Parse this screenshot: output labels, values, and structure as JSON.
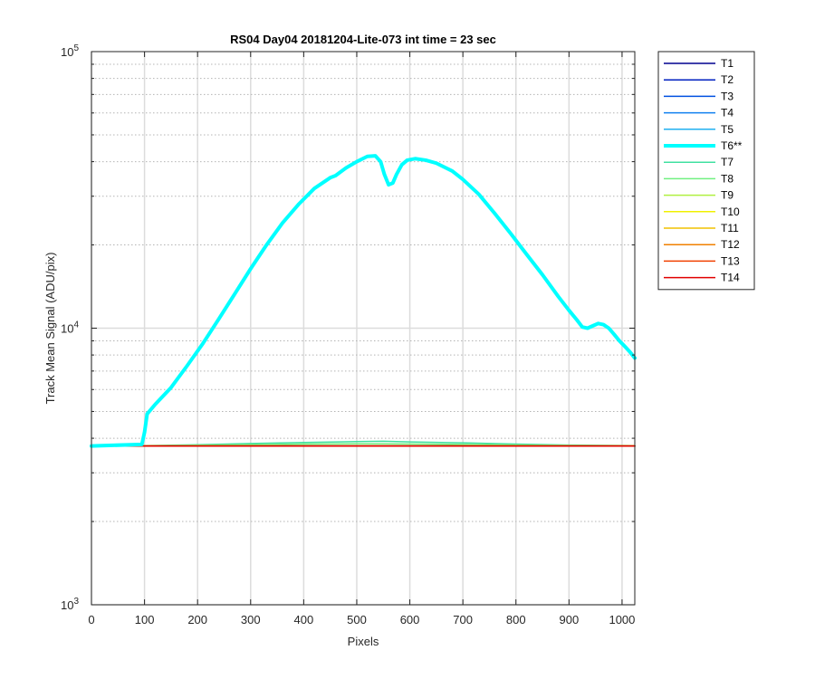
{
  "chart_data": {
    "type": "line",
    "title": "RS04 Day04 20181204-Lite-073 int time = 23 sec",
    "xlabel": "Pixels",
    "ylabel": "Track Mean Signal (ADU/pix)",
    "xlim": [
      0,
      1024
    ],
    "ylim": [
      1000,
      100000
    ],
    "yscale": "log",
    "xticks": [
      0,
      100,
      200,
      300,
      400,
      500,
      600,
      700,
      800,
      900,
      1000
    ],
    "xtick_labels": [
      "0",
      "100",
      "200",
      "300",
      "400",
      "500",
      "600",
      "700",
      "800",
      "900",
      "1000"
    ],
    "yticks": [
      {
        "base": "10",
        "exp": "3",
        "value": 1000
      },
      {
        "base": "10",
        "exp": "4",
        "value": 10000
      },
      {
        "base": "10",
        "exp": "5",
        "value": 100000
      }
    ],
    "grid": true,
    "legend_position": "outside-right",
    "series": [
      {
        "name": "T1",
        "color": "#00008f",
        "width": 1.5,
        "x": [
          0,
          1024
        ],
        "y": [
          3750,
          3750
        ]
      },
      {
        "name": "T2",
        "color": "#0020c0",
        "width": 1.5,
        "x": [
          0,
          1024
        ],
        "y": [
          3750,
          3750
        ]
      },
      {
        "name": "T3",
        "color": "#0050e0",
        "width": 1.5,
        "x": [
          0,
          1024
        ],
        "y": [
          3750,
          3750
        ]
      },
      {
        "name": "T4",
        "color": "#1080f0",
        "width": 1.5,
        "x": [
          0,
          1024
        ],
        "y": [
          3750,
          3750
        ]
      },
      {
        "name": "T5",
        "color": "#20b0f0",
        "width": 1.5,
        "x": [
          0,
          1024
        ],
        "y": [
          3750,
          3750
        ]
      },
      {
        "name": "T6**",
        "color": "#00ffff",
        "width": 4,
        "x": [
          0,
          95,
          100,
          105,
          120,
          150,
          180,
          210,
          240,
          270,
          300,
          330,
          360,
          390,
          420,
          450,
          460,
          480,
          500,
          520,
          535,
          545,
          552,
          560,
          568,
          575,
          585,
          595,
          610,
          630,
          650,
          680,
          700,
          730,
          760,
          790,
          820,
          850,
          880,
          900,
          915,
          925,
          935,
          945,
          955,
          965,
          975,
          985,
          995,
          1005,
          1015,
          1024
        ],
        "y": [
          3750,
          3800,
          4200,
          4900,
          5300,
          6100,
          7300,
          8800,
          10800,
          13300,
          16400,
          20000,
          24000,
          28000,
          32000,
          35000,
          35600,
          38000,
          40000,
          41800,
          42000,
          40000,
          36000,
          33000,
          33500,
          36000,
          39000,
          40500,
          41000,
          40500,
          39500,
          37000,
          34500,
          30500,
          26000,
          22000,
          18500,
          15600,
          13000,
          11600,
          10700,
          10100,
          10000,
          10200,
          10400,
          10300,
          10000,
          9500,
          9000,
          8600,
          8200,
          7800
        ]
      },
      {
        "name": "T7",
        "color": "#40e0a0",
        "width": 1.5,
        "x": [
          0,
          100,
          200,
          300,
          400,
          500,
          550,
          600,
          700,
          800,
          900,
          1024
        ],
        "y": [
          3750,
          3760,
          3790,
          3830,
          3860,
          3890,
          3900,
          3880,
          3850,
          3810,
          3780,
          3760
        ]
      },
      {
        "name": "T8",
        "color": "#70f080",
        "width": 1.5,
        "x": [
          0,
          100,
          200,
          300,
          400,
          500,
          600,
          700,
          800,
          900,
          1024
        ],
        "y": [
          3750,
          3755,
          3770,
          3790,
          3810,
          3820,
          3815,
          3800,
          3780,
          3765,
          3755
        ]
      },
      {
        "name": "T9",
        "color": "#b0f040",
        "width": 1.5,
        "x": [
          0,
          1024
        ],
        "y": [
          3750,
          3750
        ]
      },
      {
        "name": "T10",
        "color": "#f0f000",
        "width": 1.5,
        "x": [
          0,
          1024
        ],
        "y": [
          3750,
          3750
        ]
      },
      {
        "name": "T11",
        "color": "#f0c000",
        "width": 1.5,
        "x": [
          0,
          1024
        ],
        "y": [
          3750,
          3750
        ]
      },
      {
        "name": "T12",
        "color": "#f08000",
        "width": 1.5,
        "x": [
          0,
          1024
        ],
        "y": [
          3750,
          3750
        ]
      },
      {
        "name": "T13",
        "color": "#f04000",
        "width": 1.5,
        "x": [
          0,
          1024
        ],
        "y": [
          3750,
          3750
        ]
      },
      {
        "name": "T14",
        "color": "#e00000",
        "width": 1.5,
        "x": [
          0,
          1024
        ],
        "y": [
          3750,
          3750
        ]
      }
    ]
  }
}
